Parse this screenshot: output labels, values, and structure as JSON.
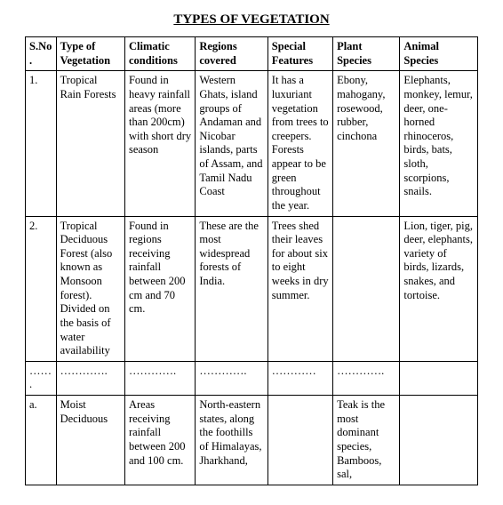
{
  "title": "TYPES OF VEGETATION",
  "columns": {
    "sno": "S.No.",
    "type": "Type of Vegetation",
    "clim": "Climatic conditions",
    "reg": "Regions covered",
    "feat": "Special Features",
    "plant": "Plant Species",
    "anim": "Animal Species"
  },
  "rows": {
    "r1": {
      "sno": "1.",
      "type": "Tropical Rain Forests",
      "clim": "Found in heavy rainfall areas (more than 200cm) with short dry season",
      "reg": "Western Ghats, island groups of Andaman and Nicobar islands, parts of Assam, and Tamil Nadu Coast",
      "feat": "It has a luxuriant vegetation from trees to creepers. Forests appear to be green throughout the year.",
      "plant": "Ebony, mahogany, rosewood, rubber, cinchona",
      "anim": "Elephants, monkey, lemur, deer, one-horned rhinoceros, birds, bats, sloth, scorpions, snails."
    },
    "r2": {
      "sno": "2.",
      "type": "Tropical Deciduous Forest (also known as Monsoon forest). Divided on the basis of water availability",
      "clim": "Found in regions receiving rainfall between 200 cm and 70 cm.",
      "reg": "These are the most widespread forests of India.",
      "feat": "Trees shed their leaves for about six to eight weeks in dry summer.",
      "plant": "",
      "anim": "Lion, tiger, pig, deer, elephants, variety of birds, lizards, snakes, and tortoise."
    },
    "divider": {
      "sno": "…….",
      "type": "………….",
      "clim": "………….",
      "reg": "………….",
      "feat": "…………",
      "plant": "………….",
      "anim": ""
    },
    "ra": {
      "sno": "a.",
      "type": "Moist Deciduous",
      "clim": "Areas receiving rainfall between 200 and 100 cm.",
      "reg": "North-eastern states, along the foothills of Himalayas, Jharkhand,",
      "feat": "",
      "plant": "Teak is the most dominant species, Bamboos, sal,",
      "anim": ""
    }
  }
}
